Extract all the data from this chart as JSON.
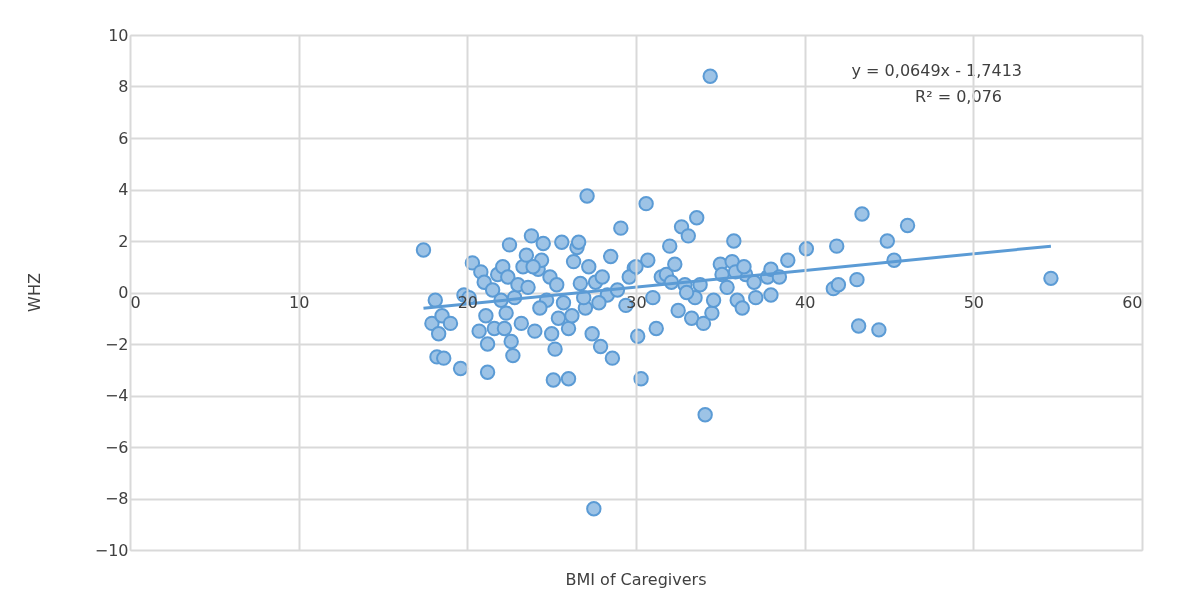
{
  "chart_data": {
    "type": "scatter",
    "xlabel": "BMI of Caregivers",
    "ylabel": "WHZ",
    "xlim": [
      0,
      60
    ],
    "xticks": [
      0,
      10,
      20,
      30,
      40,
      50,
      60
    ],
    "ylim": [
      -10,
      10
    ],
    "yticks": [
      -10,
      -8,
      -6,
      -4,
      -2,
      0,
      2,
      4,
      6,
      8,
      10
    ],
    "grid": true,
    "annotations": [
      "y = 0,0649x - 1,7413",
      "R² = 0,076"
    ],
    "series": [
      {
        "marker": "circle",
        "color": "#5b9bd5",
        "x": [
          17.4,
          18.1,
          17.9,
          18.3,
          18.5,
          18.2,
          18.6,
          19.0,
          19.6,
          19.8,
          20.1,
          20.3,
          20.7,
          20.8,
          21.0,
          21.1,
          21.2,
          21.2,
          21.5,
          21.8,
          22.0,
          22.1,
          22.3,
          22.4,
          22.5,
          22.6,
          22.7,
          22.8,
          23.0,
          23.2,
          23.3,
          23.5,
          23.6,
          23.8,
          24.0,
          24.2,
          24.4,
          24.5,
          24.7,
          24.9,
          25.0,
          25.1,
          25.2,
          25.4,
          25.6,
          25.7,
          26.0,
          26.0,
          26.3,
          26.5,
          26.6,
          26.7,
          27.0,
          27.1,
          27.2,
          27.4,
          27.5,
          27.6,
          27.9,
          28.0,
          28.3,
          28.5,
          28.6,
          28.9,
          29.1,
          29.4,
          29.9,
          30.1,
          30.3,
          30.6,
          30.7,
          31.0,
          31.2,
          31.5,
          31.8,
          32.0,
          32.3,
          32.5,
          32.7,
          32.9,
          33.1,
          33.3,
          33.5,
          33.6,
          33.8,
          34.0,
          34.1,
          34.4,
          34.5,
          34.6,
          35.0,
          35.1,
          35.4,
          35.7,
          35.8,
          36.0,
          36.3,
          36.5,
          37.0,
          37.1,
          37.8,
          38.0,
          38.0,
          38.5,
          39.0,
          40.1,
          41.7,
          41.9,
          42.0,
          43.1,
          43.2,
          43.4,
          44.4,
          44.9,
          45.3,
          46.1,
          54.6,
          21.6,
          22.2,
          23.9,
          24.3,
          25.3,
          26.2,
          26.9,
          27.8,
          29.6,
          30.0,
          32.1,
          33.0,
          35.9,
          36.4
        ],
        "values": [
          1.65,
          -0.3,
          -1.2,
          -1.6,
          -0.9,
          -2.5,
          -2.55,
          -1.2,
          -2.95,
          -0.1,
          -0.2,
          1.15,
          -1.5,
          0.8,
          0.4,
          -0.9,
          -2.0,
          -3.1,
          0.1,
          0.7,
          -0.3,
          1.0,
          -0.8,
          0.6,
          1.85,
          -1.9,
          -2.45,
          -0.2,
          0.3,
          -1.2,
          1.0,
          1.45,
          0.2,
          2.2,
          -1.5,
          0.9,
          1.25,
          1.9,
          -0.3,
          0.6,
          -1.6,
          -3.4,
          -2.2,
          -1.0,
          1.95,
          -0.4,
          -1.4,
          -3.35,
          1.2,
          1.75,
          1.95,
          0.35,
          -0.6,
          3.75,
          1.0,
          -1.6,
          -8.4,
          0.4,
          -2.1,
          0.6,
          -0.1,
          1.4,
          -2.55,
          0.1,
          2.5,
          -0.5,
          0.95,
          -1.7,
          -3.35,
          3.45,
          1.25,
          -0.2,
          -1.4,
          0.6,
          0.7,
          1.8,
          1.1,
          -0.7,
          2.55,
          0.3,
          2.2,
          -1.0,
          -0.2,
          2.9,
          0.3,
          -1.2,
          -4.75,
          8.4,
          -0.8,
          -0.3,
          1.1,
          0.7,
          0.2,
          1.2,
          2.0,
          -0.3,
          -0.6,
          0.7,
          0.4,
          -0.2,
          0.6,
          0.9,
          -0.1,
          0.6,
          1.25,
          1.7,
          0.15,
          1.8,
          0.3,
          0.5,
          -1.3,
          3.05,
          -1.45,
          2.0,
          1.25,
          2.6,
          0.55,
          -1.4,
          -1.4,
          1.0,
          -0.6,
          0.3,
          -0.9,
          -0.2,
          -0.4,
          0.6,
          1.0,
          0.4,
          0.0,
          0.8,
          1.0
        ]
      },
      {
        "type": "line",
        "marker": "none",
        "color": "#5b9bd5",
        "x": [
          17.4,
          54.6
        ],
        "values": [
          -0.61,
          1.8
        ]
      }
    ]
  }
}
